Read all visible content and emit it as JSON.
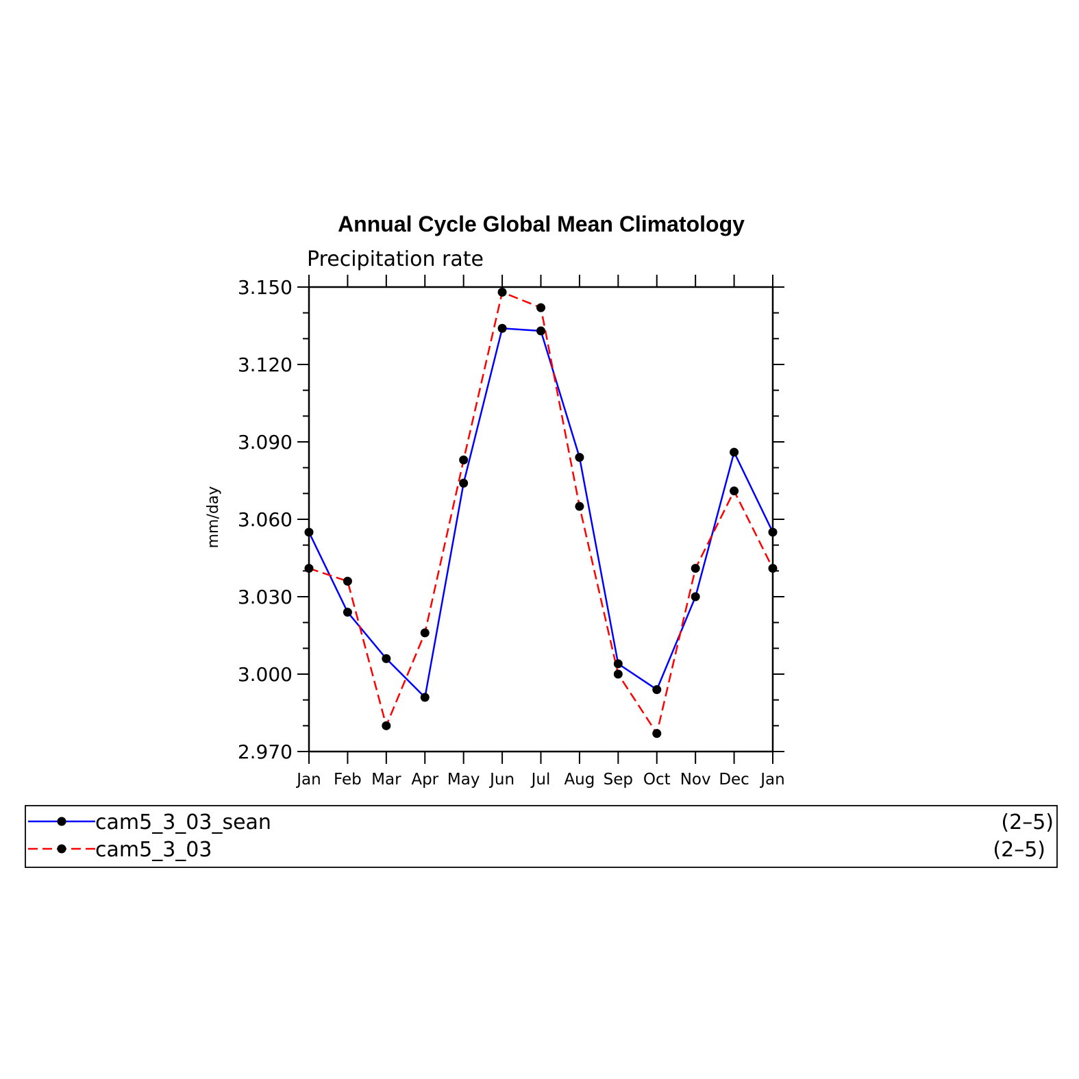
{
  "chart_data": {
    "type": "line",
    "title": "Annual Cycle Global Mean Climatology",
    "subtitle": "Precipitation rate",
    "ylabel": "mm/day",
    "xlabel": "",
    "categories": [
      "Jan",
      "Feb",
      "Mar",
      "Apr",
      "May",
      "Jun",
      "Jul",
      "Aug",
      "Sep",
      "Oct",
      "Nov",
      "Dec",
      "Jan"
    ],
    "ylim": [
      2.97,
      3.15
    ],
    "yticks": [
      "3.150",
      "3.120",
      "3.090",
      "3.060",
      "3.030",
      "3.000",
      "2.970"
    ],
    "ytick_values": [
      3.15,
      3.12,
      3.09,
      3.06,
      3.03,
      3.0,
      2.97
    ],
    "grid": false,
    "legend_position": "bottom",
    "series": [
      {
        "name": "cam5_3_03_sean",
        "range_label": "(2–5)",
        "color": "#0000ff",
        "dash": "solid",
        "values": [
          3.055,
          3.024,
          3.006,
          2.991,
          3.074,
          3.134,
          3.133,
          3.084,
          3.004,
          2.994,
          3.03,
          3.086,
          3.055
        ]
      },
      {
        "name": "cam5_3_03",
        "range_label": "(2–5)",
        "color": "#ff0000",
        "dash": "dashed",
        "values": [
          3.041,
          3.036,
          2.98,
          3.016,
          3.083,
          3.148,
          3.142,
          3.065,
          3.0,
          2.977,
          3.041,
          3.071,
          3.041
        ]
      }
    ],
    "marker_color": "#000000"
  }
}
